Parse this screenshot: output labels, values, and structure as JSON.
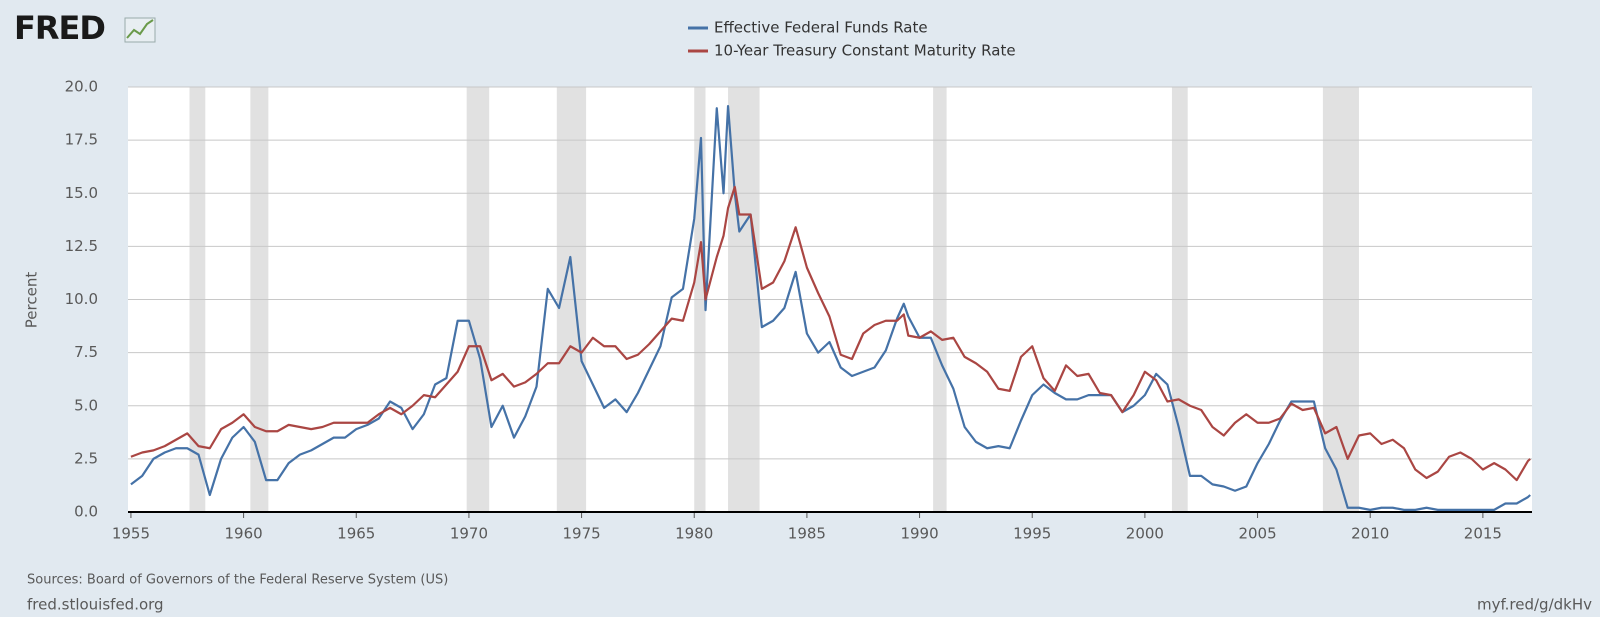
{
  "logo": "FRED",
  "chart_data": {
    "type": "line",
    "ylabel": "Percent",
    "source": "Sources: Board of Governors of the Federal Reserve System (US)",
    "site": "fred.stlouisfed.org",
    "short_link": "myf.red/g/dkHv",
    "xlim": [
      1954.87,
      2017.18
    ],
    "xticks": [
      1955,
      1960,
      1965,
      1970,
      1975,
      1980,
      1985,
      1990,
      1995,
      2000,
      2005,
      2010,
      2015
    ],
    "ylim": [
      0,
      20
    ],
    "yticks": [
      {
        "value": 0,
        "label": "0.0"
      },
      2.5,
      {
        "value": 5,
        "label": "5.0"
      },
      7.5,
      {
        "value": 10,
        "label": "10.0"
      },
      12.5,
      {
        "value": 15,
        "label": "15.0"
      },
      17.5,
      {
        "value": 20,
        "label": "20.0"
      }
    ],
    "grid": true,
    "legend": "top",
    "recessions": [
      [
        1957.6,
        1958.3
      ],
      [
        1960.3,
        1961.1
      ],
      [
        1969.9,
        1970.9
      ],
      [
        1973.9,
        1975.2
      ],
      [
        1980.0,
        1980.5
      ],
      [
        1981.5,
        1982.9
      ],
      [
        1990.6,
        1991.2
      ],
      [
        2001.2,
        2001.9
      ],
      [
        2007.9,
        2009.5
      ]
    ],
    "recession_color": "#e1e1e1",
    "x": [
      1955,
      1955.5,
      1956,
      1956.5,
      1957,
      1957.5,
      1958,
      1958.5,
      1959,
      1959.5,
      1960,
      1960.5,
      1961,
      1961.5,
      1962,
      1962.5,
      1963,
      1963.5,
      1964,
      1964.5,
      1965,
      1965.5,
      1966,
      1966.5,
      1967,
      1967.5,
      1968,
      1968.5,
      1969,
      1969.5,
      1970,
      1970.5,
      1971,
      1971.5,
      1972,
      1972.5,
      1973,
      1973.5,
      1974,
      1974.5,
      1975,
      1975.5,
      1976,
      1976.5,
      1977,
      1977.5,
      1978,
      1978.5,
      1979,
      1979.5,
      1980,
      1980.3,
      1980.5,
      1981,
      1981.3,
      1981.5,
      1981.8,
      1982,
      1982.5,
      1983,
      1983.5,
      1984,
      1984.5,
      1985,
      1985.5,
      1986,
      1986.5,
      1987,
      1987.5,
      1988,
      1988.5,
      1989,
      1989.3,
      1989.5,
      1990,
      1990.5,
      1991,
      1991.5,
      1992,
      1992.5,
      1993,
      1993.5,
      1994,
      1994.5,
      1995,
      1995.5,
      1996,
      1996.5,
      1997,
      1997.5,
      1998,
      1998.5,
      1999,
      1999.5,
      2000,
      2000.5,
      2001,
      2001.5,
      2002,
      2002.5,
      2003,
      2003.5,
      2004,
      2004.5,
      2005,
      2005.5,
      2006,
      2006.5,
      2007,
      2007.5,
      2008,
      2008.5,
      2009,
      2009.5,
      2010,
      2010.5,
      2011,
      2011.5,
      2012,
      2012.5,
      2013,
      2013.5,
      2014,
      2014.5,
      2015,
      2015.5,
      2016,
      2016.5,
      2017,
      2017.1
    ],
    "series": [
      {
        "name": "Effective Federal Funds Rate",
        "color": "#4572a7",
        "values": [
          1.3,
          1.7,
          2.5,
          2.8,
          3.0,
          3.0,
          2.7,
          0.8,
          2.5,
          3.5,
          4.0,
          3.3,
          1.5,
          1.5,
          2.3,
          2.7,
          2.9,
          3.2,
          3.5,
          3.5,
          3.9,
          4.1,
          4.4,
          5.2,
          4.9,
          3.9,
          4.6,
          6.0,
          6.3,
          9.0,
          9.0,
          7.2,
          4.0,
          5.0,
          3.5,
          4.5,
          5.9,
          10.5,
          9.6,
          12.0,
          7.1,
          6.0,
          4.9,
          5.3,
          4.7,
          5.6,
          6.7,
          7.8,
          10.1,
          10.5,
          13.8,
          17.6,
          9.5,
          19.0,
          15.0,
          19.1,
          15.0,
          13.2,
          14.0,
          8.7,
          9.0,
          9.6,
          11.3,
          8.4,
          7.5,
          8.0,
          6.8,
          6.4,
          6.6,
          6.8,
          7.6,
          9.1,
          9.8,
          9.2,
          8.2,
          8.2,
          6.9,
          5.8,
          4.0,
          3.3,
          3.0,
          3.1,
          3.0,
          4.3,
          5.5,
          6.0,
          5.6,
          5.3,
          5.3,
          5.5,
          5.5,
          5.5,
          4.7,
          5.0,
          5.5,
          6.5,
          6.0,
          4.0,
          1.7,
          1.7,
          1.3,
          1.2,
          1.0,
          1.2,
          2.3,
          3.2,
          4.3,
          5.2,
          5.2,
          5.2,
          3.0,
          2.0,
          0.2,
          0.2,
          0.1,
          0.2,
          0.2,
          0.1,
          0.1,
          0.2,
          0.1,
          0.1,
          0.1,
          0.1,
          0.1,
          0.1,
          0.4,
          0.4,
          0.7,
          0.8
        ]
      },
      {
        "name": "10-Year Treasury Constant Maturity Rate",
        "color": "#aa4643",
        "values": [
          2.6,
          2.8,
          2.9,
          3.1,
          3.4,
          3.7,
          3.1,
          3.0,
          3.9,
          4.2,
          4.6,
          4.0,
          3.8,
          3.8,
          4.1,
          4.0,
          3.9,
          4.0,
          4.2,
          4.2,
          4.2,
          4.2,
          4.6,
          4.9,
          4.6,
          5.0,
          5.5,
          5.4,
          6.0,
          6.6,
          7.8,
          7.8,
          6.2,
          6.5,
          5.9,
          6.1,
          6.5,
          7.0,
          7.0,
          7.8,
          7.5,
          8.2,
          7.8,
          7.8,
          7.2,
          7.4,
          7.9,
          8.5,
          9.1,
          9.0,
          10.8,
          12.7,
          10.0,
          12.0,
          13.0,
          14.3,
          15.3,
          14.0,
          14.0,
          10.5,
          10.8,
          11.8,
          13.4,
          11.5,
          10.3,
          9.2,
          7.4,
          7.2,
          8.4,
          8.8,
          9.0,
          9.0,
          9.3,
          8.3,
          8.2,
          8.5,
          8.1,
          8.2,
          7.3,
          7.0,
          6.6,
          5.8,
          5.7,
          7.3,
          7.8,
          6.3,
          5.7,
          6.9,
          6.4,
          6.5,
          5.6,
          5.5,
          4.7,
          5.5,
          6.6,
          6.2,
          5.2,
          5.3,
          5.0,
          4.8,
          4.0,
          3.6,
          4.2,
          4.6,
          4.2,
          4.2,
          4.4,
          5.1,
          4.8,
          4.9,
          3.7,
          4.0,
          2.5,
          3.6,
          3.7,
          3.2,
          3.4,
          3.0,
          2.0,
          1.6,
          1.9,
          2.6,
          2.8,
          2.5,
          2.0,
          2.3,
          2.0,
          1.5,
          2.4,
          2.5
        ]
      }
    ]
  }
}
